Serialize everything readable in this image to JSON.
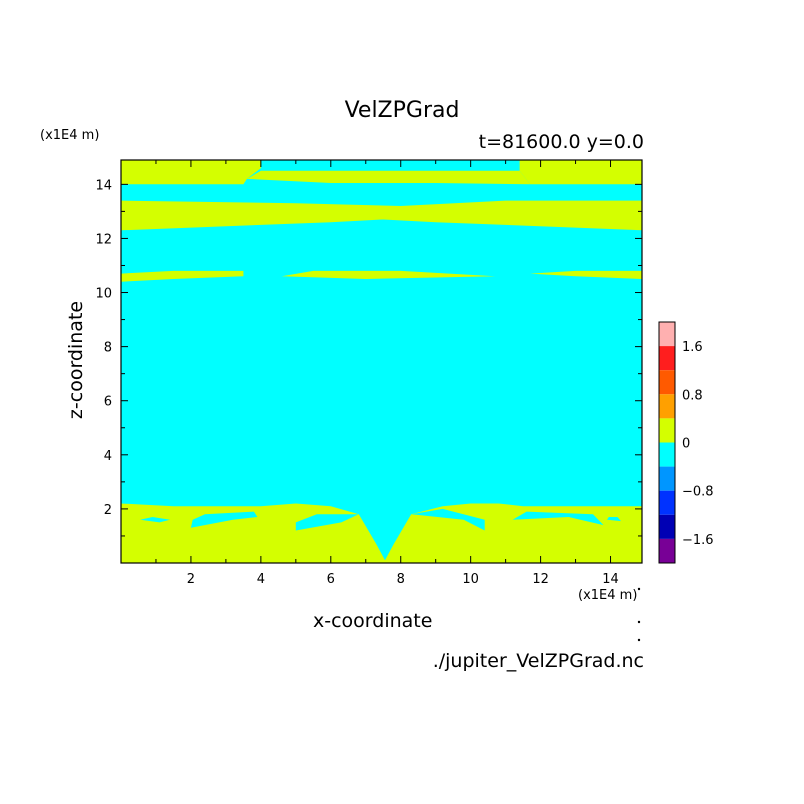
{
  "chart_data": {
    "type": "heatmap",
    "title": "VelZPGrad",
    "subtitle": "t=81600.0 y=0.0",
    "xlabel": "x-coordinate",
    "ylabel": "z-coordinate",
    "x_unit": "(x1E4 m)",
    "y_unit": "(x1E4 m)",
    "source_file": "./jupiter_VelZPGrad.nc",
    "xlim": [
      0,
      14.9
    ],
    "ylim": [
      0,
      14.9
    ],
    "x_ticks": [
      2,
      4,
      6,
      8,
      10,
      12,
      14
    ],
    "y_ticks": [
      2,
      4,
      6,
      8,
      10,
      12,
      14
    ],
    "background_level_color": "#00ffff",
    "regions": [
      {
        "level": "0 to 0.4",
        "color": "#d4ff00",
        "points": [
          [
            0,
            0
          ],
          [
            14.9,
            0
          ],
          [
            14.9,
            2.1
          ],
          [
            12.8,
            2.1
          ],
          [
            11.5,
            2.1
          ],
          [
            10.8,
            2.2
          ],
          [
            10,
            2.2
          ],
          [
            9.2,
            2.1
          ],
          [
            8.3,
            1.8
          ],
          [
            7.8,
            0.7
          ],
          [
            7.55,
            0.1
          ],
          [
            7.3,
            0.7
          ],
          [
            6.8,
            1.8
          ],
          [
            6,
            2.1
          ],
          [
            5,
            2.2
          ],
          [
            4,
            2.1
          ],
          [
            3,
            2.1
          ],
          [
            1.5,
            2.1
          ],
          [
            0,
            2.2
          ]
        ]
      },
      {
        "level": "-0.4 to 0",
        "color": "#00ffff",
        "points": [
          [
            2.0,
            1.3
          ],
          [
            3.2,
            1.6
          ],
          [
            3.9,
            1.7
          ],
          [
            3.8,
            1.9
          ],
          [
            2.4,
            1.8
          ],
          [
            2.05,
            1.6
          ]
        ]
      },
      {
        "level": "-0.4 to 0",
        "color": "#00ffff",
        "points": [
          [
            0.55,
            1.6
          ],
          [
            1.1,
            1.5
          ],
          [
            1.4,
            1.6
          ],
          [
            0.9,
            1.7
          ]
        ]
      },
      {
        "level": "-0.4 to 0",
        "color": "#00ffff",
        "points": [
          [
            5.0,
            1.2
          ],
          [
            6.3,
            1.5
          ],
          [
            6.8,
            1.8
          ],
          [
            5.6,
            1.8
          ],
          [
            5.0,
            1.5
          ]
        ]
      },
      {
        "level": "-0.4 to 0",
        "color": "#00ffff",
        "points": [
          [
            8.3,
            1.8
          ],
          [
            9.8,
            1.6
          ],
          [
            10.4,
            1.2
          ],
          [
            10.4,
            1.6
          ],
          [
            9.2,
            2.0
          ]
        ]
      },
      {
        "level": "-0.4 to 0",
        "color": "#00ffff",
        "points": [
          [
            11.2,
            1.6
          ],
          [
            12.8,
            1.7
          ],
          [
            13.8,
            1.4
          ],
          [
            13.5,
            1.8
          ],
          [
            11.6,
            1.9
          ]
        ]
      },
      {
        "level": "-0.4 to 0",
        "color": "#00ffff",
        "points": [
          [
            13.9,
            1.6
          ],
          [
            14.3,
            1.55
          ],
          [
            14.2,
            1.7
          ],
          [
            13.95,
            1.7
          ]
        ]
      },
      {
        "level": "0 to 0.4",
        "color": "#d4ff00",
        "points": [
          [
            0,
            10.4
          ],
          [
            1.5,
            10.5
          ],
          [
            3.5,
            10.6
          ],
          [
            3.5,
            10.8
          ],
          [
            1.5,
            10.8
          ],
          [
            0,
            10.7
          ]
        ]
      },
      {
        "level": "0 to 0.4",
        "color": "#d4ff00",
        "points": [
          [
            4.6,
            10.6
          ],
          [
            7,
            10.5
          ],
          [
            10.7,
            10.6
          ],
          [
            8,
            10.8
          ],
          [
            5.5,
            10.8
          ]
        ]
      },
      {
        "level": "0 to 0.4",
        "color": "#d4ff00",
        "points": [
          [
            11.7,
            10.7
          ],
          [
            13,
            10.6
          ],
          [
            14.9,
            10.5
          ],
          [
            14.9,
            10.8
          ],
          [
            13,
            10.8
          ]
        ]
      },
      {
        "level": "0 to 0.4",
        "color": "#d4ff00",
        "points": [
          [
            0,
            12.3
          ],
          [
            4,
            12.5
          ],
          [
            6,
            12.6
          ],
          [
            7.5,
            12.7
          ],
          [
            9,
            12.6
          ],
          [
            11,
            12.5
          ],
          [
            14.9,
            12.3
          ],
          [
            14.9,
            13.4
          ],
          [
            11,
            13.4
          ],
          [
            8,
            13.2
          ],
          [
            5,
            13.3
          ],
          [
            0,
            13.4
          ]
        ]
      },
      {
        "level": "0 to 0.4",
        "color": "#d4ff00",
        "points": [
          [
            0,
            14.0
          ],
          [
            3.5,
            14.0
          ],
          [
            3.6,
            14.2
          ],
          [
            4,
            14.6
          ],
          [
            4,
            14.9
          ],
          [
            0,
            14.9
          ]
        ]
      },
      {
        "level": "0 to 0.4",
        "color": "#d4ff00",
        "points": [
          [
            11.4,
            14.9
          ],
          [
            11.4,
            14.5
          ],
          [
            11.7,
            14.0
          ],
          [
            14.9,
            14.0
          ],
          [
            14.9,
            14.9
          ]
        ]
      },
      {
        "level": "0 to 0.4",
        "color": "#d4ff00",
        "points": [
          [
            3.6,
            14.2
          ],
          [
            6,
            14.05
          ],
          [
            9,
            14.05
          ],
          [
            11.7,
            14.0
          ],
          [
            11.4,
            14.5
          ],
          [
            9,
            14.5
          ],
          [
            6,
            14.5
          ],
          [
            4,
            14.5
          ]
        ]
      }
    ],
    "colorbar": {
      "labels": [
        {
          "value": 1.6,
          "text": "1.6"
        },
        {
          "value": 0.8,
          "text": "0.8"
        },
        {
          "value": 0,
          "text": "0"
        },
        {
          "value": -0.8,
          "text": "−0.8"
        },
        {
          "value": -1.6,
          "text": "−1.6"
        }
      ],
      "bins": [
        {
          "lo": 1.6,
          "hi": 2.0,
          "color": "#ffb0b0"
        },
        {
          "lo": 1.2,
          "hi": 1.6,
          "color": "#ff1e1e"
        },
        {
          "lo": 0.8,
          "hi": 1.2,
          "color": "#ff5a00"
        },
        {
          "lo": 0.4,
          "hi": 0.8,
          "color": "#ffa000"
        },
        {
          "lo": 0.0,
          "hi": 0.4,
          "color": "#d4ff00"
        },
        {
          "lo": -0.4,
          "hi": 0.0,
          "color": "#00ffff"
        },
        {
          "lo": -0.8,
          "hi": -0.4,
          "color": "#0096ff"
        },
        {
          "lo": -1.2,
          "hi": -0.8,
          "color": "#0032ff"
        },
        {
          "lo": -1.6,
          "hi": -1.2,
          "color": "#0000b4"
        },
        {
          "lo": -2.0,
          "hi": -1.6,
          "color": "#780096"
        }
      ]
    }
  }
}
